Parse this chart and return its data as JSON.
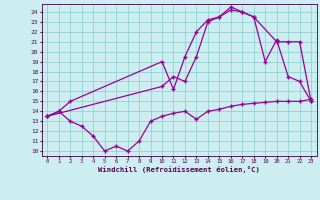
{
  "xlabel": "Windchill (Refroidissement éolien,°C)",
  "xlim": [
    -0.5,
    23.5
  ],
  "ylim": [
    9.5,
    24.8
  ],
  "xticks": [
    0,
    1,
    2,
    3,
    4,
    5,
    6,
    7,
    8,
    9,
    10,
    11,
    12,
    13,
    14,
    15,
    16,
    17,
    18,
    19,
    20,
    21,
    22,
    23
  ],
  "yticks": [
    10,
    11,
    12,
    13,
    14,
    15,
    16,
    17,
    18,
    19,
    20,
    21,
    22,
    23,
    24
  ],
  "bg_color": "#cceef0",
  "line_color": "#990099",
  "grid_color": "#88cccc",
  "line1_x": [
    0,
    1,
    2,
    10,
    11,
    12,
    13,
    14,
    15,
    16,
    17,
    18,
    19,
    20,
    21,
    22,
    23
  ],
  "line1_y": [
    13.5,
    14.0,
    15.0,
    19.0,
    16.2,
    19.5,
    22.0,
    23.2,
    23.5,
    24.2,
    24.0,
    23.5,
    19.0,
    21.2,
    17.5,
    17.0,
    15.0
  ],
  "line2_x": [
    0,
    10,
    11,
    12,
    13,
    14,
    15,
    16,
    17,
    18,
    20,
    21,
    22,
    23
  ],
  "line2_y": [
    13.5,
    16.5,
    17.5,
    17.0,
    19.5,
    23.0,
    23.5,
    24.5,
    24.0,
    23.5,
    21.0,
    21.0,
    21.0,
    15.0
  ],
  "line3_x": [
    0,
    1,
    2,
    3,
    4,
    5,
    6,
    7,
    8,
    9,
    10,
    11,
    12,
    13,
    14,
    15,
    16,
    17,
    18,
    19,
    20,
    21,
    22,
    23
  ],
  "line3_y": [
    13.5,
    14.0,
    13.0,
    12.5,
    11.5,
    10.0,
    10.5,
    10.0,
    11.0,
    13.0,
    13.5,
    13.8,
    14.0,
    13.2,
    14.0,
    14.2,
    14.5,
    14.7,
    14.8,
    14.9,
    15.0,
    15.0,
    15.0,
    15.2
  ]
}
